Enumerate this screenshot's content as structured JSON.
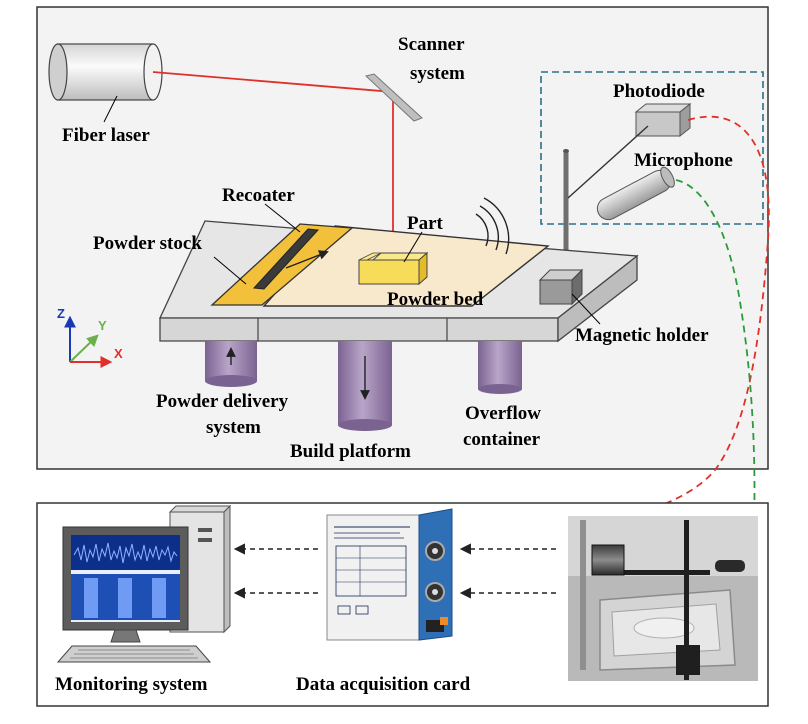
{
  "labels": {
    "fiber_laser": "Fiber laser",
    "scanner_line1": "Scanner",
    "scanner_line2": "system",
    "photodiode": "Photodiode",
    "microphone": "Microphone",
    "recoater": "Recoater",
    "part": "Part",
    "powder_stock": "Powder stock",
    "powder_bed": "Powder bed",
    "magnetic_holder": "Magnetic holder",
    "powder_delivery_line1": "Powder delivery",
    "powder_delivery_line2": "system",
    "build_platform": "Build platform",
    "overflow_line1": "Overflow",
    "overflow_line2": "container",
    "monitoring_system": "Monitoring system",
    "data_acquisition_card": "Data acquisition card"
  },
  "axes": {
    "z": "Z",
    "y": "Y",
    "x": "X"
  },
  "colors": {
    "laser": "#e0302a",
    "photodiode_signal": "#e0302a",
    "microphone_signal": "#2a9a3a",
    "dashed_box": "#2a6f8a",
    "platform_top": "#e6e6e6",
    "powder_bed": "#f8e8cc",
    "powder_stock": "#f2c03a",
    "part": "#f7dc5a",
    "cylinders": "#a08ab3",
    "screen_blue": "#1d4fb5",
    "daq_blue": "#2f6fb6",
    "axis_z": "#1a3ab5",
    "axis_y": "#6ab04c",
    "axis_x": "#e0302a"
  },
  "icons": [
    "laser-cylinder-icon",
    "scanner-mirror-icon",
    "photodiode-icon",
    "microphone-icon",
    "computer-icon",
    "daq-card-icon",
    "setup-photo-icon"
  ]
}
